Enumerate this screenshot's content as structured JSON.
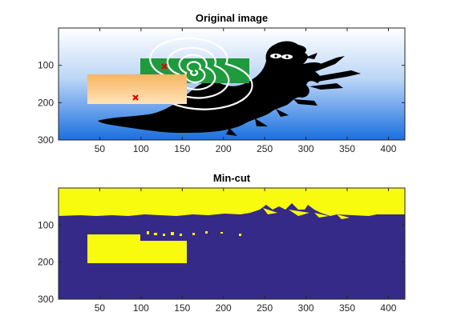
{
  "chart_data": [
    {
      "type": "heatmap",
      "title": "Original image",
      "xlim": [
        0,
        420
      ],
      "ylim": [
        0,
        300
      ],
      "y_reversed": true,
      "xticks": [
        50,
        100,
        150,
        200,
        250,
        300,
        350,
        400
      ],
      "yticks": [
        100,
        200,
        300
      ],
      "background": "blue-white vertical gradient (white at top, blue #1a6fe0 at bottom)",
      "silhouette": "black sea-monster / dragon shape",
      "rectangles": [
        {
          "kind": "spiral pattern",
          "colors": [
            "#1a9a3a",
            "#ffffff"
          ],
          "x": [
            105,
            233
          ],
          "y": [
            68,
            147
          ]
        },
        {
          "kind": "orange gradient",
          "colors": [
            "#f6b66a",
            "#ffe1b4"
          ],
          "x": [
            38,
            156
          ],
          "y": [
            128,
            209
          ]
        }
      ],
      "markers": [
        {
          "symbol": "x",
          "color": "#e00000",
          "x": 130,
          "y": 104
        },
        {
          "symbol": "x",
          "color": "#e00000",
          "x": 94,
          "y": 188
        }
      ]
    },
    {
      "type": "heatmap",
      "title": "Min-cut",
      "xlim": [
        0,
        420
      ],
      "ylim": [
        0,
        300
      ],
      "y_reversed": true,
      "xticks": [
        50,
        100,
        150,
        200,
        250,
        300,
        350,
        400
      ],
      "yticks": [
        100,
        200,
        300
      ],
      "colors": {
        "label_1": "#f9fb0e",
        "label_0": "#352a87"
      },
      "segments": [
        {
          "label": 1,
          "region": "top band",
          "y": [
            0,
            72
          ]
        },
        {
          "label": 1,
          "region": "rectangle",
          "x": [
            37,
            156
          ],
          "y": [
            130,
            209
          ]
        }
      ]
    }
  ]
}
